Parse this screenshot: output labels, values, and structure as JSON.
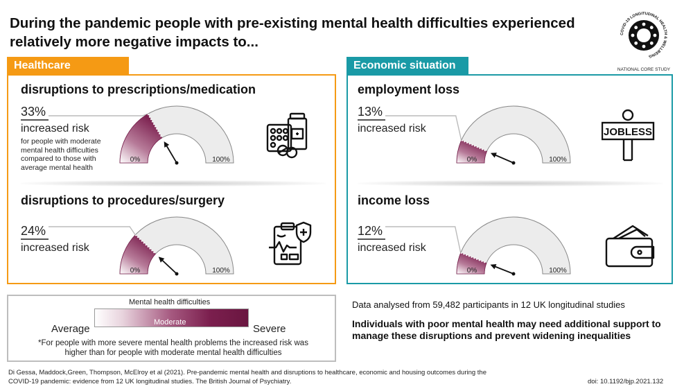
{
  "title": "During the pandemic people with pre-existing mental health difficulties experienced relatively more negative impacts to...",
  "logo": {
    "ring_text": "COVID-19 LONGITUDINAL HEALTH & WELLBEING",
    "caption": "NATIONAL CORE STUDY"
  },
  "colors": {
    "healthcare": "#f59a14",
    "economic": "#1a9aa6",
    "gauge_dark": "#7b1f4e",
    "gauge_empty": "#ececec"
  },
  "healthcare": {
    "tab": "Healthcare",
    "items": [
      {
        "heading": "disruptions to prescriptions/medication",
        "percent": "33%",
        "risk_label": "increased risk",
        "note": "for people with moderate mental health difficulties compared to those with average mental health",
        "value": 33,
        "min_label": "0%",
        "max_label": "100%",
        "icon": "medication-icon"
      },
      {
        "heading": "disruptions to procedures/surgery",
        "percent": "24%",
        "risk_label": "increased risk",
        "value": 24,
        "min_label": "0%",
        "max_label": "100%",
        "icon": "medical-clipboard-icon"
      }
    ]
  },
  "economic": {
    "tab": "Economic situation",
    "items": [
      {
        "heading": "employment loss",
        "percent": "13%",
        "risk_label": "increased risk",
        "value": 13,
        "min_label": "0%",
        "max_label": "100%",
        "icon": "jobless-sign-icon",
        "sign_text": "JOBLESS"
      },
      {
        "heading": "income loss",
        "percent": "12%",
        "risk_label": "increased risk",
        "value": 12,
        "min_label": "0%",
        "max_label": "100%",
        "icon": "wallet-icon"
      }
    ]
  },
  "legend": {
    "scale_title": "Mental health difficulties",
    "low": "Average",
    "mid": "Moderate",
    "high": "Severe",
    "footnote": "*For people with more severe mental health problems the increased risk was higher than for people with moderate mental health difficulties"
  },
  "summary": {
    "data_line": "Data analysed from 59,482 participants in 12 UK longitudinal studies",
    "conclusion": "Individuals with poor mental health may need additional support to manage these disruptions and prevent widening inequalities"
  },
  "citation": "Di Gessa, Maddock,Green, Thompson, McElroy et al (2021). Pre-pandemic mental health and disruptions to healthcare, economic and housing outcomes during the COVID-19 pandemic: evidence from 12 UK longitudinal studies. The British Journal of Psychiatry.",
  "doi": "doi: 10.1192/bjp.2021.132"
}
